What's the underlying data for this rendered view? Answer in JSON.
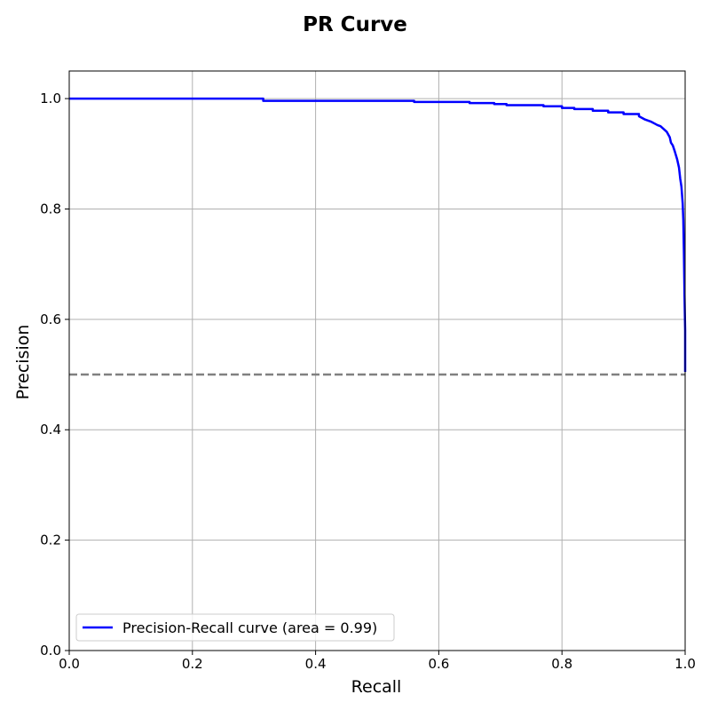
{
  "chart_data": {
    "type": "line",
    "title": "PR Curve",
    "xlabel": "Recall",
    "ylabel": "Precision",
    "xlim": [
      0.0,
      1.0
    ],
    "ylim": [
      0.0,
      1.05
    ],
    "x_ticks": [
      "0.0",
      "0.2",
      "0.4",
      "0.6",
      "0.8",
      "1.0"
    ],
    "y_ticks": [
      "0.0",
      "0.2",
      "0.4",
      "0.6",
      "0.8",
      "1.0"
    ],
    "grid": true,
    "legend_position": "lower-left",
    "series": [
      {
        "name": "Precision-Recall curve (area = 0.99)",
        "color": "#0000ff",
        "style": "solid",
        "x": [
          0.0,
          0.315,
          0.315,
          0.56,
          0.56,
          0.65,
          0.65,
          0.69,
          0.69,
          0.71,
          0.71,
          0.77,
          0.77,
          0.8,
          0.8,
          0.82,
          0.82,
          0.85,
          0.85,
          0.875,
          0.875,
          0.9,
          0.9,
          0.925,
          0.925,
          0.93,
          0.935,
          0.945,
          0.95,
          0.955,
          0.96,
          0.97,
          0.975,
          0.977,
          0.98,
          0.983,
          0.987,
          0.99,
          0.992,
          0.994,
          0.996,
          0.997,
          0.998,
          0.999,
          1.0,
          1.0
        ],
        "y": [
          1.0,
          1.0,
          0.996,
          0.996,
          0.994,
          0.994,
          0.992,
          0.992,
          0.99,
          0.99,
          0.988,
          0.988,
          0.986,
          0.986,
          0.983,
          0.983,
          0.981,
          0.981,
          0.978,
          0.978,
          0.975,
          0.975,
          0.972,
          0.972,
          0.968,
          0.965,
          0.962,
          0.958,
          0.955,
          0.952,
          0.95,
          0.94,
          0.93,
          0.92,
          0.915,
          0.905,
          0.89,
          0.875,
          0.855,
          0.84,
          0.81,
          0.78,
          0.72,
          0.64,
          0.58,
          0.505
        ]
      },
      {
        "name": "",
        "color": "#808080",
        "style": "dashed",
        "x": [
          0.0,
          1.0
        ],
        "y": [
          0.5,
          0.5
        ]
      }
    ]
  }
}
